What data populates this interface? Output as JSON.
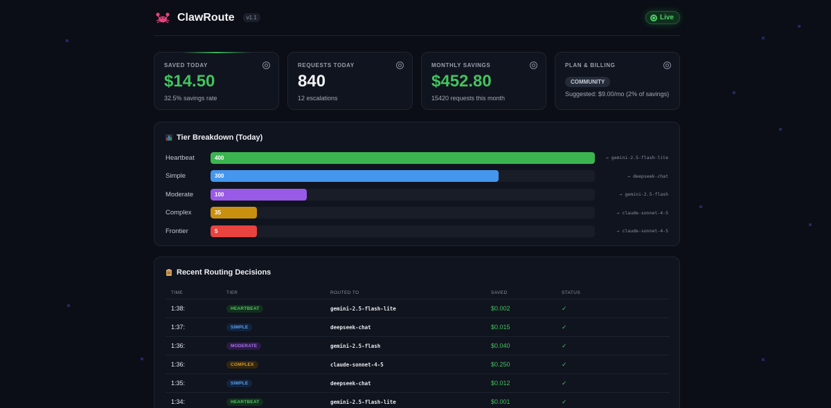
{
  "header": {
    "brand": "ClawRoute",
    "version": "v1.1",
    "status": "Live",
    "logo_icon": "crab-icon"
  },
  "stats": [
    {
      "label": "SAVED TODAY",
      "value": "$14.50",
      "sub": "32.5% savings rate",
      "accent": "green"
    },
    {
      "label": "REQUESTS TODAY",
      "value": "840",
      "sub": "12 escalations",
      "accent": "white"
    },
    {
      "label": "MONTHLY SAVINGS",
      "value": "$452.80",
      "sub": "15420 requests this month",
      "accent": "green"
    },
    {
      "label": "PLAN & BILLING",
      "plan": "COMMUNITY",
      "sub": "Suggested: $9.00/mo (2% of savings)"
    }
  ],
  "tiers": {
    "title": "Tier Breakdown (Today)",
    "max": 400,
    "items": [
      {
        "name": "Heartbeat",
        "count": 400,
        "model": "→ gemini-2.5-flash-lite",
        "color": "#3bb54f"
      },
      {
        "name": "Simple",
        "count": 300,
        "model": "→ deepseek-chat",
        "color": "#4596ef"
      },
      {
        "name": "Moderate",
        "count": 100,
        "model": "→ gemini-2.5-flash",
        "color": "#9a5ae8"
      },
      {
        "name": "Complex",
        "count": 35,
        "model": "→ claude-sonnet-4-5",
        "color": "#c99010"
      },
      {
        "name": "Frontier",
        "count": 5,
        "model": "→ claude-sonnet-4-5",
        "color": "#e8433e"
      }
    ]
  },
  "recent": {
    "title": "Recent Routing Decisions",
    "columns": [
      "TIME",
      "TIER",
      "ROUTED TO",
      "SAVED",
      "STATUS"
    ],
    "rows": [
      {
        "time": "1:38:",
        "tier": "HEARTBEAT",
        "model": "gemini-2.5-flash-lite",
        "saved": "$0.002",
        "status": "✓"
      },
      {
        "time": "1:37:",
        "tier": "SIMPLE",
        "model": "deepseek-chat",
        "saved": "$0.015",
        "status": "✓"
      },
      {
        "time": "1:36:",
        "tier": "MODERATE",
        "model": "gemini-2.5-flash",
        "saved": "$0.040",
        "status": "✓"
      },
      {
        "time": "1:36:",
        "tier": "COMPLEX",
        "model": "claude-sonnet-4-5",
        "saved": "$0.250",
        "status": "✓"
      },
      {
        "time": "1:35:",
        "tier": "SIMPLE",
        "model": "deepseek-chat",
        "saved": "$0.012",
        "status": "✓"
      },
      {
        "time": "1:34:",
        "tier": "HEARTBEAT",
        "model": "gemini-2.5-flash-lite",
        "saved": "$0.001",
        "status": "✓"
      }
    ]
  },
  "tier_badge_colors": {
    "HEARTBEAT": {
      "bg": "#12301c",
      "fg": "#4fc564"
    },
    "SIMPLE": {
      "bg": "#12243e",
      "fg": "#5aa0f0"
    },
    "MODERATE": {
      "bg": "#2a1a44",
      "fg": "#a874f0"
    },
    "COMPLEX": {
      "bg": "#33260e",
      "fg": "#d59a24"
    }
  }
}
